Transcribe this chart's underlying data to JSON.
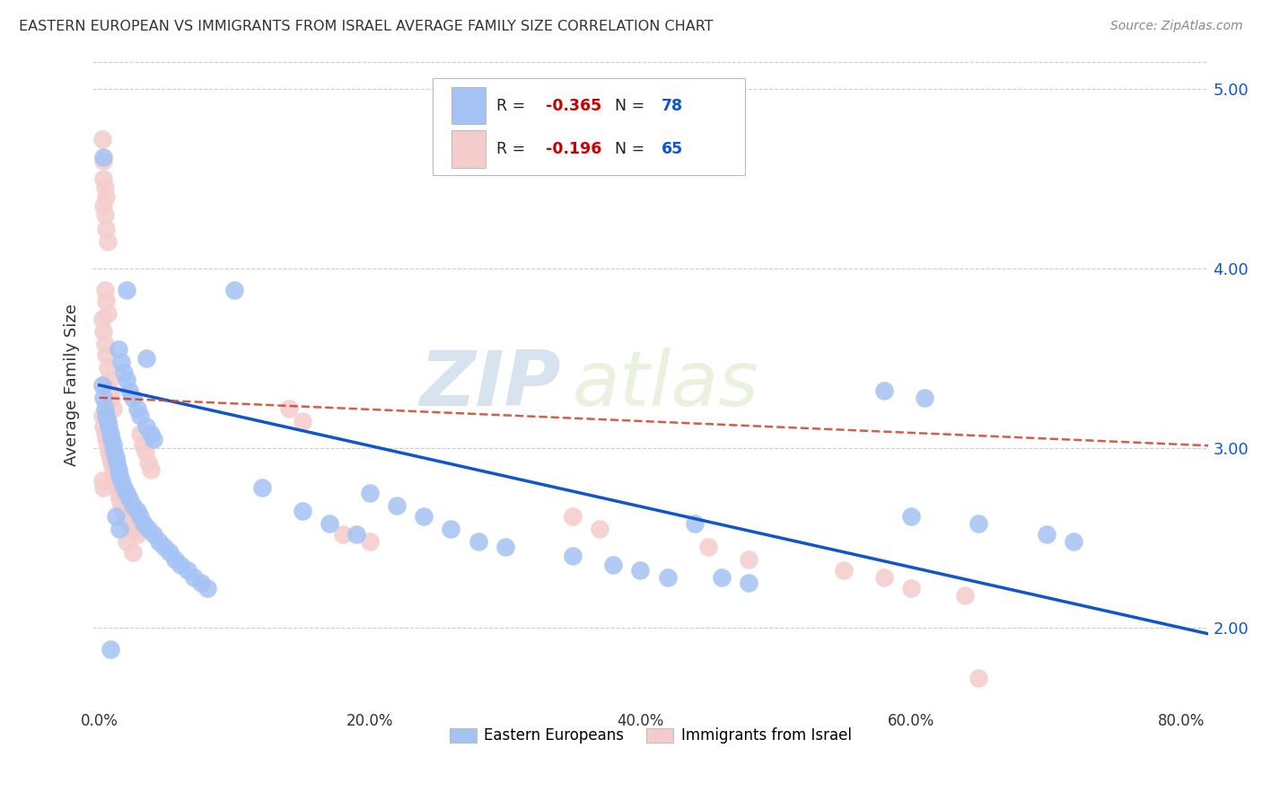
{
  "title": "EASTERN EUROPEAN VS IMMIGRANTS FROM ISRAEL AVERAGE FAMILY SIZE CORRELATION CHART",
  "source": "Source: ZipAtlas.com",
  "ylabel": "Average Family Size",
  "yticks": [
    2.0,
    3.0,
    4.0,
    5.0
  ],
  "legend_blue_r": "-0.365",
  "legend_blue_n": "78",
  "legend_pink_r": "-0.196",
  "legend_pink_n": "65",
  "legend_label_blue": "Eastern Europeans",
  "legend_label_pink": "Immigrants from Israel",
  "watermark_zip": "ZIP",
  "watermark_atlas": "atlas",
  "blue_color": "#a4c2f4",
  "pink_color": "#f4cccc",
  "blue_line_color": "#1155cc",
  "pink_line_color": "#cc4125",
  "blue_scatter": [
    [
      0.002,
      3.35
    ],
    [
      0.003,
      3.28
    ],
    [
      0.004,
      3.22
    ],
    [
      0.005,
      3.18
    ],
    [
      0.006,
      3.15
    ],
    [
      0.007,
      3.12
    ],
    [
      0.008,
      3.08
    ],
    [
      0.009,
      3.05
    ],
    [
      0.01,
      3.02
    ],
    [
      0.011,
      2.98
    ],
    [
      0.012,
      2.95
    ],
    [
      0.013,
      2.92
    ],
    [
      0.014,
      2.88
    ],
    [
      0.015,
      2.85
    ],
    [
      0.016,
      2.82
    ],
    [
      0.018,
      2.78
    ],
    [
      0.02,
      2.75
    ],
    [
      0.022,
      2.72
    ],
    [
      0.025,
      2.68
    ],
    [
      0.028,
      2.65
    ],
    [
      0.03,
      2.62
    ],
    [
      0.033,
      2.58
    ],
    [
      0.036,
      2.55
    ],
    [
      0.04,
      2.52
    ],
    [
      0.044,
      2.48
    ],
    [
      0.048,
      2.45
    ],
    [
      0.052,
      2.42
    ],
    [
      0.056,
      2.38
    ],
    [
      0.06,
      2.35
    ],
    [
      0.065,
      2.32
    ],
    [
      0.07,
      2.28
    ],
    [
      0.075,
      2.25
    ],
    [
      0.08,
      2.22
    ],
    [
      0.003,
      4.62
    ],
    [
      0.02,
      3.88
    ],
    [
      0.014,
      3.55
    ],
    [
      0.016,
      3.48
    ],
    [
      0.018,
      3.42
    ],
    [
      0.02,
      3.38
    ],
    [
      0.022,
      3.32
    ],
    [
      0.025,
      3.28
    ],
    [
      0.028,
      3.22
    ],
    [
      0.03,
      3.18
    ],
    [
      0.035,
      3.12
    ],
    [
      0.038,
      3.08
    ],
    [
      0.04,
      3.05
    ],
    [
      0.012,
      2.62
    ],
    [
      0.015,
      2.55
    ],
    [
      0.008,
      1.88
    ],
    [
      0.1,
      3.88
    ],
    [
      0.12,
      2.78
    ],
    [
      0.035,
      3.5
    ],
    [
      0.15,
      2.65
    ],
    [
      0.17,
      2.58
    ],
    [
      0.19,
      2.52
    ],
    [
      0.2,
      2.75
    ],
    [
      0.22,
      2.68
    ],
    [
      0.24,
      2.62
    ],
    [
      0.26,
      2.55
    ],
    [
      0.28,
      2.48
    ],
    [
      0.3,
      2.45
    ],
    [
      0.35,
      2.4
    ],
    [
      0.38,
      2.35
    ],
    [
      0.4,
      2.32
    ],
    [
      0.42,
      2.28
    ],
    [
      0.44,
      2.58
    ],
    [
      0.46,
      2.28
    ],
    [
      0.48,
      2.25
    ],
    [
      0.58,
      3.32
    ],
    [
      0.61,
      3.28
    ],
    [
      0.6,
      2.62
    ],
    [
      0.65,
      2.58
    ],
    [
      0.7,
      2.52
    ],
    [
      0.72,
      2.48
    ]
  ],
  "pink_scatter": [
    [
      0.002,
      4.72
    ],
    [
      0.003,
      4.6
    ],
    [
      0.003,
      4.5
    ],
    [
      0.004,
      4.45
    ],
    [
      0.005,
      4.4
    ],
    [
      0.003,
      4.35
    ],
    [
      0.004,
      4.3
    ],
    [
      0.005,
      4.22
    ],
    [
      0.006,
      4.15
    ],
    [
      0.004,
      3.88
    ],
    [
      0.005,
      3.82
    ],
    [
      0.006,
      3.75
    ],
    [
      0.002,
      3.72
    ],
    [
      0.003,
      3.65
    ],
    [
      0.004,
      3.58
    ],
    [
      0.005,
      3.52
    ],
    [
      0.006,
      3.45
    ],
    [
      0.007,
      3.38
    ],
    [
      0.008,
      3.32
    ],
    [
      0.009,
      3.28
    ],
    [
      0.01,
      3.22
    ],
    [
      0.002,
      3.18
    ],
    [
      0.003,
      3.12
    ],
    [
      0.004,
      3.08
    ],
    [
      0.005,
      3.05
    ],
    [
      0.006,
      3.02
    ],
    [
      0.007,
      2.98
    ],
    [
      0.008,
      2.95
    ],
    [
      0.009,
      2.92
    ],
    [
      0.01,
      2.88
    ],
    [
      0.011,
      2.85
    ],
    [
      0.012,
      2.82
    ],
    [
      0.013,
      2.78
    ],
    [
      0.014,
      2.75
    ],
    [
      0.015,
      2.72
    ],
    [
      0.016,
      2.68
    ],
    [
      0.018,
      2.65
    ],
    [
      0.02,
      2.62
    ],
    [
      0.022,
      2.58
    ],
    [
      0.025,
      2.55
    ],
    [
      0.028,
      2.52
    ],
    [
      0.03,
      3.08
    ],
    [
      0.032,
      3.02
    ],
    [
      0.034,
      2.98
    ],
    [
      0.036,
      2.92
    ],
    [
      0.038,
      2.88
    ],
    [
      0.02,
      2.48
    ],
    [
      0.025,
      2.42
    ],
    [
      0.002,
      2.82
    ],
    [
      0.003,
      2.78
    ],
    [
      0.14,
      3.22
    ],
    [
      0.15,
      3.15
    ],
    [
      0.18,
      2.52
    ],
    [
      0.2,
      2.48
    ],
    [
      0.35,
      2.62
    ],
    [
      0.37,
      2.55
    ],
    [
      0.45,
      2.45
    ],
    [
      0.48,
      2.38
    ],
    [
      0.55,
      2.32
    ],
    [
      0.58,
      2.28
    ],
    [
      0.6,
      2.22
    ],
    [
      0.64,
      2.18
    ],
    [
      0.65,
      1.72
    ]
  ],
  "xmin": -0.005,
  "xmax": 0.82,
  "ymin": 1.55,
  "ymax": 5.15,
  "xtick_positions": [
    0.0,
    0.2,
    0.4,
    0.6,
    0.8
  ],
  "xtick_labels": [
    "0.0%",
    "20.0%",
    "40.0%",
    "60.0%",
    "80.0%"
  ],
  "blue_line_x0": 0.0,
  "blue_line_y0": 3.35,
  "blue_line_x1": 0.8,
  "blue_line_y1": 2.0,
  "pink_line_x0": 0.0,
  "pink_line_y0": 3.28,
  "pink_line_x1": 0.8,
  "pink_line_y1": 3.02
}
